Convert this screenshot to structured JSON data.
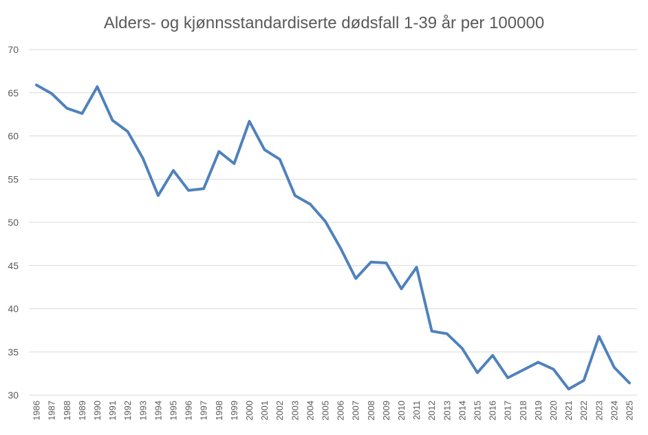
{
  "chart_data": {
    "type": "line",
    "title": "Alders- og kjønnsstandardiserte dødsfall 1-39 år per 100000",
    "xlabel": "",
    "ylabel": "",
    "ylim": [
      30,
      70
    ],
    "yticks": [
      30,
      35,
      40,
      45,
      50,
      55,
      60,
      65,
      70
    ],
    "grid": true,
    "legend": "none",
    "x": [
      "1986",
      "1987",
      "1988",
      "1989",
      "1990",
      "1991",
      "1992",
      "1993",
      "1994",
      "1995",
      "1996",
      "1997",
      "1998",
      "1999",
      "2000",
      "2001",
      "2002",
      "2003",
      "2004",
      "2005",
      "2006",
      "2007",
      "2008",
      "2009",
      "2010",
      "2011",
      "2012",
      "2013",
      "2014",
      "2015",
      "2016",
      "2017",
      "2018",
      "2019",
      "2020",
      "2021",
      "2022",
      "2023",
      "2024",
      "2025"
    ],
    "series": [
      {
        "color": "#4f81bd",
        "values": [
          65.9,
          64.9,
          63.2,
          62.6,
          65.7,
          61.8,
          60.5,
          57.4,
          53.1,
          56.0,
          53.7,
          53.9,
          58.2,
          56.8,
          61.7,
          58.4,
          57.3,
          53.1,
          52.1,
          50.1,
          47.0,
          43.5,
          45.4,
          45.3,
          42.3,
          44.8,
          37.4,
          37.1,
          35.4,
          32.6,
          34.6,
          32.0,
          32.9,
          33.8,
          33.0,
          30.7,
          31.7,
          36.8,
          33.2,
          31.4
        ]
      }
    ]
  }
}
